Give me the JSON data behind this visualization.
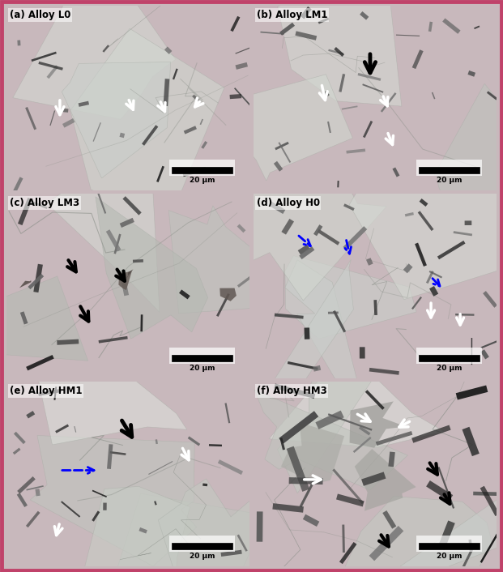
{
  "figure_width": 6.21,
  "figure_height": 7.06,
  "dpi": 100,
  "outer_border_color": "#c0426a",
  "panel_border_color": "#c0426a",
  "bg_light": "#cdd1ca",
  "bg_medium": "#b8bdb5",
  "panels": [
    {
      "label": "(a) Alloy L0",
      "row": 0,
      "col": 0
    },
    {
      "label": "(b) Alloy LM1",
      "row": 0,
      "col": 1
    },
    {
      "label": "(c) Alloy LM3",
      "row": 1,
      "col": 0
    },
    {
      "label": "(d) Alloy H0",
      "row": 1,
      "col": 1
    },
    {
      "label": "(e) Alloy HM1",
      "row": 2,
      "col": 0
    },
    {
      "label": "(f) Alloy HM3",
      "row": 2,
      "col": 1
    }
  ],
  "scale_bar_text": "20 μm",
  "label_fontsize": 8.5,
  "scale_fontsize": 6.5
}
